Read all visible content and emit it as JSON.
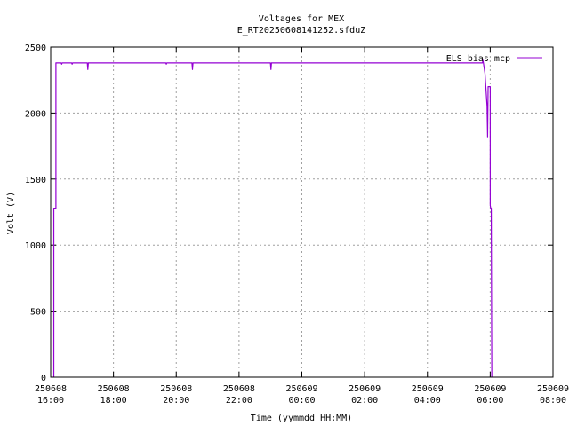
{
  "chart_data": {
    "type": "line",
    "title": "Voltages for MEX",
    "subtitle": "E_RT20250608141252.sfduZ",
    "xlabel": "Time (yymmdd HH:MM)",
    "ylabel": "Volt (V)",
    "xlim": [
      "250608 16:00",
      "250609 08:00"
    ],
    "ylim": [
      0,
      2500
    ],
    "grid": true,
    "legend_position": "top-right",
    "x_ticks": [
      {
        "date": "250608",
        "time": "16:00"
      },
      {
        "date": "250608",
        "time": "18:00"
      },
      {
        "date": "250608",
        "time": "20:00"
      },
      {
        "date": "250608",
        "time": "22:00"
      },
      {
        "date": "250609",
        "time": "00:00"
      },
      {
        "date": "250609",
        "time": "02:00"
      },
      {
        "date": "250609",
        "time": "04:00"
      },
      {
        "date": "250609",
        "time": "06:00"
      },
      {
        "date": "250609",
        "time": "08:00"
      }
    ],
    "y_ticks": [
      0,
      500,
      1000,
      1500,
      2000,
      2500
    ],
    "series": [
      {
        "name": "ELS bias mcp",
        "color": "#9400d3",
        "points": [
          [
            "250608 16:06",
            0
          ],
          [
            "250608 16:06",
            1280
          ],
          [
            "250608 16:10",
            1280
          ],
          [
            "250608 16:10",
            2380
          ],
          [
            "250608 16:20",
            2380
          ],
          [
            "250608 16:21",
            2370
          ],
          [
            "250608 16:22",
            2380
          ],
          [
            "250608 16:40",
            2380
          ],
          [
            "250608 16:41",
            2370
          ],
          [
            "250608 16:42",
            2380
          ],
          [
            "250608 17:10",
            2380
          ],
          [
            "250608 17:11",
            2330
          ],
          [
            "250608 17:12",
            2380
          ],
          [
            "250608 18:00",
            2380
          ],
          [
            "250608 19:40",
            2380
          ],
          [
            "250608 19:41",
            2370
          ],
          [
            "250608 19:42",
            2380
          ],
          [
            "250608 20:30",
            2380
          ],
          [
            "250608 20:31",
            2330
          ],
          [
            "250608 20:32",
            2380
          ],
          [
            "250608 23:00",
            2380
          ],
          [
            "250608 23:01",
            2330
          ],
          [
            "250608 23:02",
            2380
          ],
          [
            "250609 05:45",
            2380
          ],
          [
            "250609 05:46",
            2400
          ],
          [
            "250609 05:47",
            2380
          ],
          [
            "250609 05:50",
            2300
          ],
          [
            "250609 05:54",
            2050
          ],
          [
            "250609 05:55",
            1820
          ],
          [
            "250609 05:56",
            2200
          ],
          [
            "250609 06:00",
            2200
          ],
          [
            "250609 06:00",
            1300
          ],
          [
            "250609 06:01",
            1280
          ],
          [
            "250609 06:02",
            1280
          ],
          [
            "250609 06:03",
            0
          ]
        ]
      }
    ]
  }
}
